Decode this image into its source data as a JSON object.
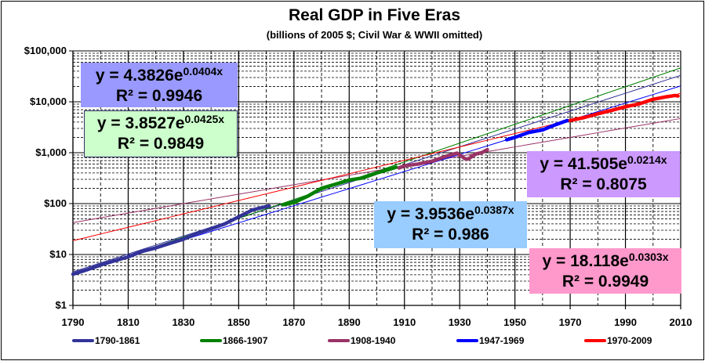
{
  "chart_data": {
    "type": "line",
    "title": "Real GDP in Five Eras",
    "subtitle": "(billions of 2005 $; Civil War & WWII omitted)",
    "xlabel": "",
    "ylabel": "",
    "x_range": [
      1790,
      2010
    ],
    "y_range": [
      1,
      100000
    ],
    "y_scale": "log",
    "grid": true,
    "x_ticks": [
      "1790",
      "1810",
      "1830",
      "1850",
      "1870",
      "1890",
      "1910",
      "1930",
      "1950",
      "1970",
      "1990",
      "2010"
    ],
    "y_ticks": [
      "$1",
      "$10",
      "$100",
      "$1,000",
      "$10,000",
      "$100,000"
    ],
    "legend_position": "bottom",
    "series": [
      {
        "name": "1790-1861",
        "color": "#333399",
        "x": [
          1790,
          1795,
          1800,
          1805,
          1810,
          1815,
          1820,
          1825,
          1830,
          1835,
          1840,
          1845,
          1850,
          1855,
          1861
        ],
        "y": [
          4.1,
          5.0,
          6.2,
          7.5,
          9.0,
          11.5,
          13.5,
          16.5,
          20,
          26,
          32,
          40,
          55,
          75,
          90
        ]
      },
      {
        "name": "1866-1907",
        "color": "#008000",
        "x": [
          1866,
          1870,
          1875,
          1880,
          1885,
          1890,
          1895,
          1900,
          1905,
          1907
        ],
        "y": [
          95,
          105,
          140,
          200,
          240,
          290,
          320,
          400,
          480,
          520
        ]
      },
      {
        "name": "1908-1940",
        "color": "#993366",
        "x": [
          1908,
          1910,
          1915,
          1920,
          1925,
          1929,
          1932,
          1933,
          1936,
          1938,
          1940
        ],
        "y": [
          500,
          550,
          600,
          680,
          850,
          980,
          760,
          750,
          950,
          1000,
          1150
        ]
      },
      {
        "name": "1947-1969",
        "color": "#0000ff",
        "x": [
          1947,
          1950,
          1955,
          1960,
          1965,
          1969
        ],
        "y": [
          1800,
          2000,
          2500,
          2800,
          3600,
          4300
        ]
      },
      {
        "name": "1970-2009",
        "color": "#ff0000",
        "x": [
          1970,
          1975,
          1980,
          1985,
          1990,
          1995,
          2000,
          2005,
          2008,
          2009
        ],
        "y": [
          4300,
          4900,
          5800,
          6800,
          8000,
          9100,
          11200,
          12600,
          13300,
          13000
        ]
      }
    ],
    "trendlines": [
      {
        "series": "1790-1861",
        "a": 4.3826,
        "b": 0.0404,
        "r2": "0.9946",
        "equation_coef": "y = 4.3826e",
        "equation_exp": "0.0404x",
        "r2_label": "R² = 0.9946",
        "box_color": "#9999ff",
        "line_color": "#333399"
      },
      {
        "series": "1866-1907",
        "a": 3.8527,
        "b": 0.0425,
        "r2": "0.9849",
        "equation_coef": "y = 3.8527e",
        "equation_exp": "0.0425x",
        "r2_label": "R² = 0.9849",
        "box_color": "#ccffcc",
        "line_color": "#008000"
      },
      {
        "series": "1908-1940",
        "a": 41.505,
        "b": 0.0214,
        "r2": "0.8075",
        "equation_coef": "y = 41.505e",
        "equation_exp": "0.0214x",
        "r2_label": "R² = 0.8075",
        "box_color": "#cc99ff",
        "line_color": "#993366"
      },
      {
        "series": "1947-1969",
        "a": 3.9536,
        "b": 0.0387,
        "r2": "0.986",
        "equation_coef": "y = 3.9536e",
        "equation_exp": "0.0387x",
        "r2_label": "R² = 0.986",
        "box_color": "#99ccff",
        "line_color": "#0000ff"
      },
      {
        "series": "1970-2009",
        "a": 18.118,
        "b": 0.0303,
        "r2": "0.9949",
        "equation_coef": "y = 18.118e",
        "equation_exp": "0.0303x",
        "r2_label": "R² = 0.9949",
        "box_color": "#ff99cc",
        "line_color": "#ff0000"
      }
    ]
  }
}
